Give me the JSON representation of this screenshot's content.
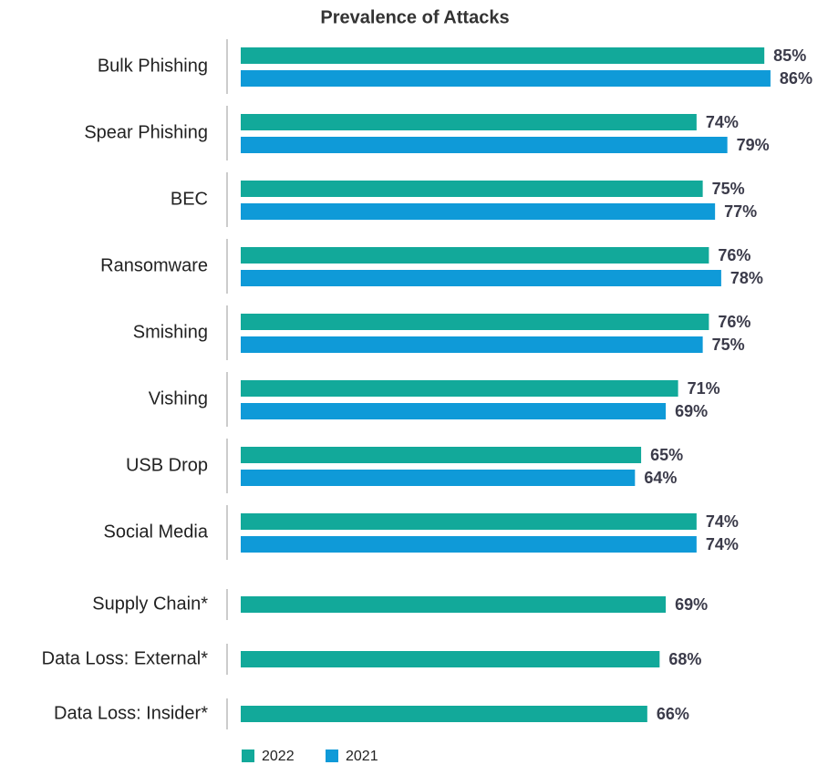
{
  "chart_data": {
    "type": "bar",
    "orientation": "horizontal",
    "title": "Prevalence of Attacks",
    "categories": [
      "Bulk Phishing",
      "Spear Phishing",
      "BEC",
      "Ransomware",
      "Smishing",
      "Vishing",
      "USB Drop",
      "Social Media",
      "Supply Chain*",
      "Data Loss: External*",
      "Data Loss: Insider*"
    ],
    "series": [
      {
        "name": "2022",
        "color": "#12a99a",
        "values": [
          85,
          74,
          75,
          76,
          76,
          71,
          65,
          74,
          69,
          68,
          66
        ],
        "value_labels": [
          "85%",
          "74%",
          "75%",
          "76%",
          "76%",
          "71%",
          "65%",
          "74%",
          "69%",
          "68%",
          "66%"
        ]
      },
      {
        "name": "2021",
        "color": "#0f9ad8",
        "values": [
          86,
          79,
          77,
          78,
          75,
          69,
          64,
          74,
          null,
          null,
          null
        ],
        "value_labels": [
          "86%",
          "79%",
          "77%",
          "78%",
          "75%",
          "69%",
          "64%",
          "74%",
          null,
          null,
          null
        ]
      }
    ]
  }
}
